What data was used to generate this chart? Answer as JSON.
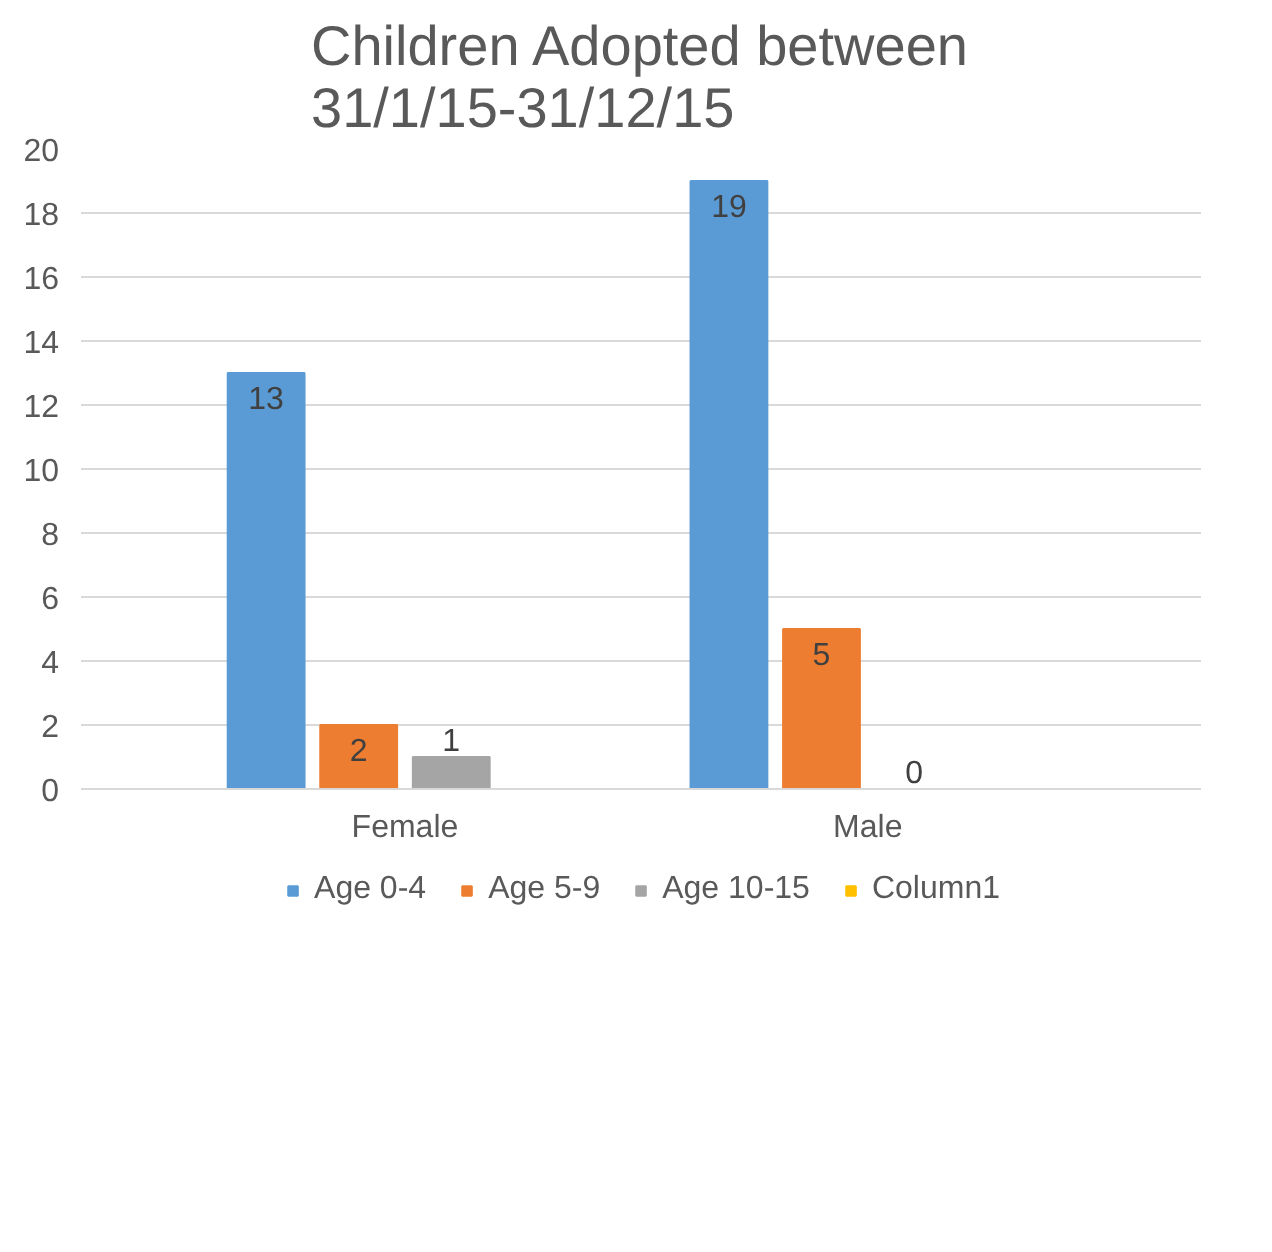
{
  "chart_data": {
    "type": "bar",
    "title": "Children Adopted between 31/1/15-31/12/15",
    "categories": [
      "Female",
      "Male"
    ],
    "series": [
      {
        "name": "Age 0-4",
        "color": "#5b9bd5",
        "values": [
          13,
          19
        ]
      },
      {
        "name": "Age 5-9",
        "color": "#ed7d31",
        "values": [
          2,
          5
        ]
      },
      {
        "name": "Age 10-15",
        "color": "#a5a5a5",
        "values": [
          1,
          0
        ]
      },
      {
        "name": "Column1",
        "color": "#ffc000",
        "values": [
          null,
          null
        ]
      }
    ],
    "ylim": [
      0,
      20
    ],
    "yticks": [
      0,
      2,
      4,
      6,
      8,
      10,
      12,
      14,
      16,
      18,
      20
    ],
    "grid": "y",
    "legend": "bottom",
    "data_labels": true
  }
}
